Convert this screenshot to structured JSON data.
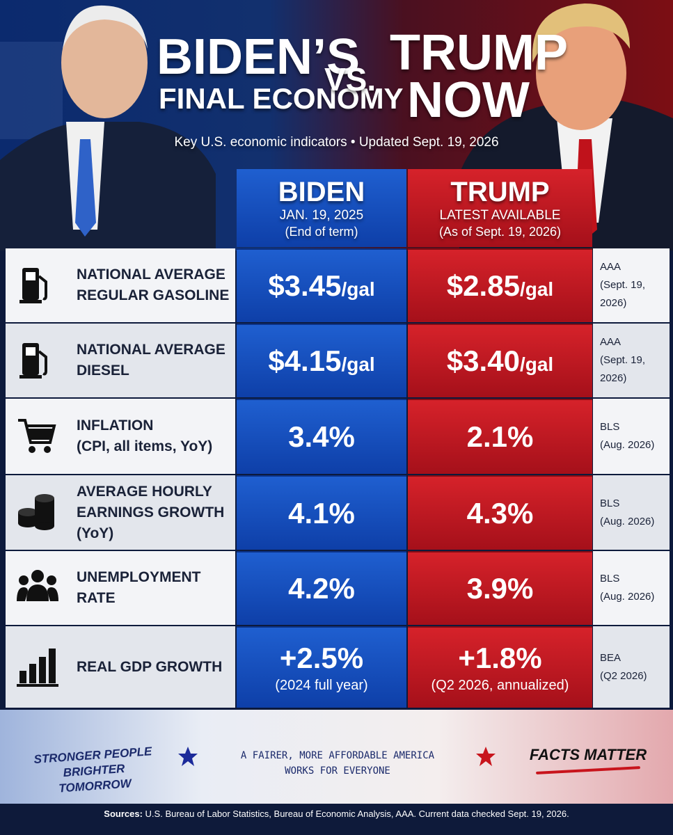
{
  "header": {
    "left_title": [
      "BIDEN’S",
      "FINAL ECONOMY"
    ],
    "vs": "VS.",
    "right_title": [
      "TRUMP",
      "NOW"
    ],
    "subtitle": "Key U.S. economic indicators • Updated Sept. 19, 2026"
  },
  "columns": [
    {
      "name": "BIDEN",
      "line1": "JAN. 19, 2025",
      "line2": "(End of term)"
    },
    {
      "name": "TRUMP",
      "line1": "LATEST AVAILABLE",
      "line2": "(As of Sept. 19, 2026)"
    }
  ],
  "rows": [
    {
      "label": [
        "NATIONAL AVERAGE",
        "REGULAR GASOLINE"
      ],
      "biden": {
        "value": "$3.45",
        "unit": "/gal"
      },
      "trump": {
        "value": "$2.85",
        "unit": "/gal"
      },
      "source": [
        "AAA",
        "(Sept. 19, 2026)"
      ]
    },
    {
      "label": [
        "NATIONAL AVERAGE",
        "DIESEL"
      ],
      "biden": {
        "value": "$4.15",
        "unit": "/gal"
      },
      "trump": {
        "value": "$3.40",
        "unit": "/gal"
      },
      "source": [
        "AAA",
        "(Sept. 19, 2026)"
      ]
    },
    {
      "label": [
        "INFLATION",
        "(CPI, all items, YoY)"
      ],
      "biden": {
        "value": "3.4%"
      },
      "trump": {
        "value": "2.1%"
      },
      "source": [
        "BLS",
        "(Aug. 2026)"
      ]
    },
    {
      "label": [
        "AVERAGE HOURLY",
        "EARNINGS GROWTH (YoY)"
      ],
      "biden": {
        "value": "4.1%"
      },
      "trump": {
        "value": "4.3%"
      },
      "source": [
        "BLS",
        "(Aug. 2026)"
      ]
    },
    {
      "label": [
        "UNEMPLOYMENT RATE"
      ],
      "biden": {
        "value": "4.2%"
      },
      "trump": {
        "value": "3.9%"
      },
      "source": [
        "BLS",
        "(Aug. 2026)"
      ]
    },
    {
      "label": [
        "REAL GDP GROWTH"
      ],
      "biden": {
        "value": "+2.5%",
        "note": "(2024 full year)"
      },
      "trump": {
        "value": "+1.8%",
        "note": "(Q2 2026, annualized)"
      },
      "source": [
        "BEA",
        "(Q2 2026)"
      ]
    }
  ],
  "footer": {
    "left": [
      "STRONGER PEOPLE",
      "BRIGHTER TOMORROW"
    ],
    "center": [
      "A FAIRER, MORE AFFORDABLE AMERICA",
      "WORKS FOR EVERYONE"
    ],
    "right": "FACTS MATTER",
    "sources_label": "Sources:",
    "sources_text": "U.S. Bureau of Labor Statistics, Bureau of Economic Analysis, AAA.  Current data checked Sept. 19, 2026."
  }
}
